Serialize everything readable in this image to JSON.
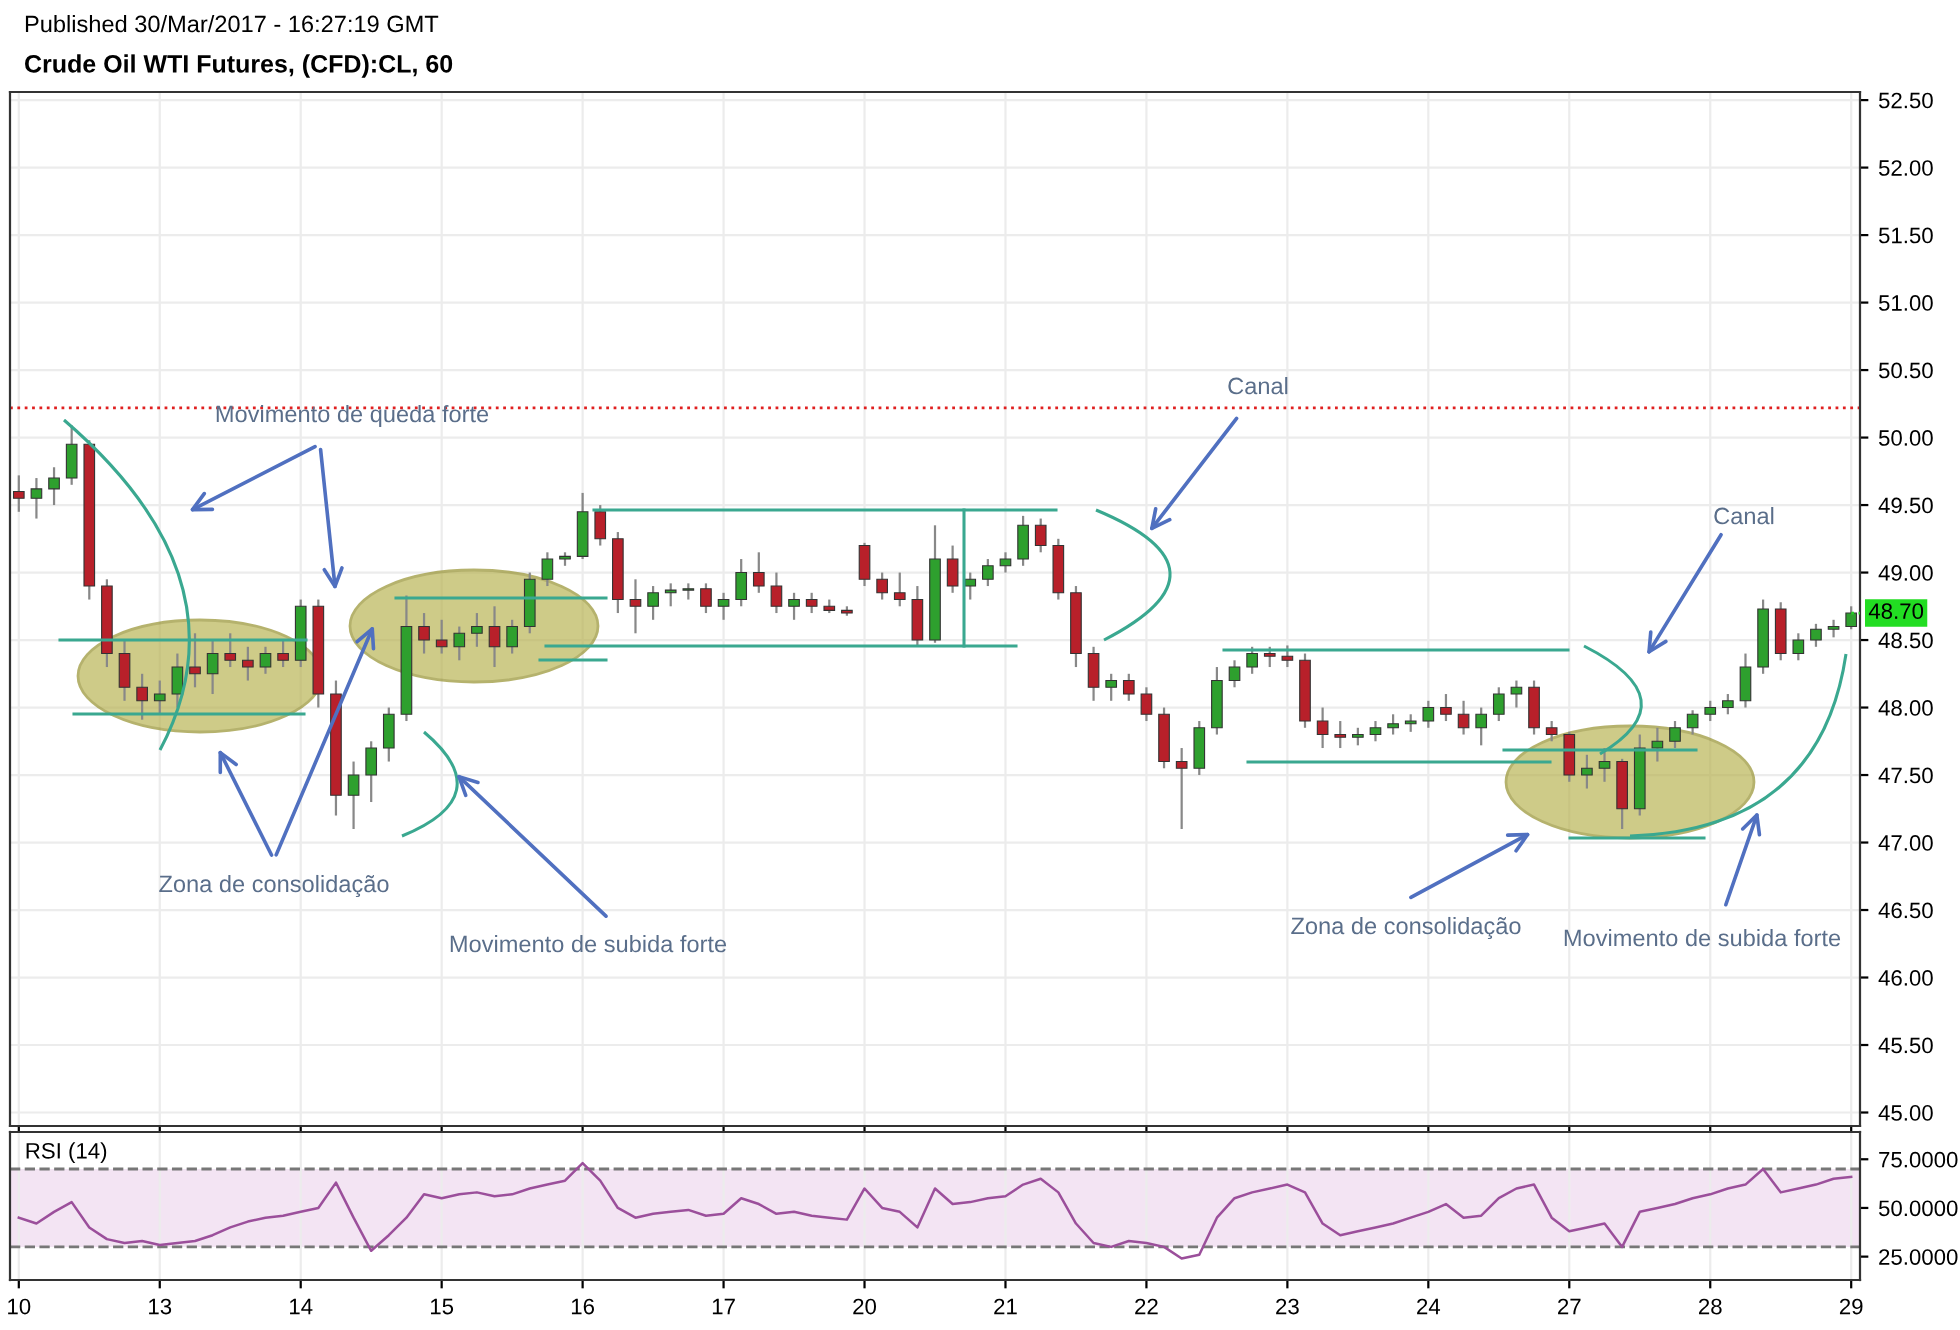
{
  "chart_data": [
    {
      "type": "candlestick",
      "title": "Crude Oil WTI Futures, (CFD):CL, 60",
      "subtitle": "Published 30/Mar/2017 - 16:27:19 GMT",
      "categories": [
        "10",
        null,
        null,
        null,
        null,
        null,
        null,
        null,
        "13",
        null,
        null,
        null,
        null,
        null,
        null,
        null,
        "14",
        null,
        null,
        null,
        null,
        null,
        null,
        null,
        "15",
        null,
        null,
        null,
        null,
        null,
        null,
        null,
        "16",
        null,
        null,
        null,
        null,
        null,
        null,
        null,
        "17",
        null,
        null,
        null,
        null,
        null,
        null,
        null,
        "20",
        null,
        null,
        null,
        null,
        null,
        null,
        null,
        "21",
        null,
        null,
        null,
        null,
        null,
        null,
        null,
        "22",
        null,
        null,
        null,
        null,
        null,
        null,
        null,
        "23",
        null,
        null,
        null,
        null,
        null,
        null,
        null,
        "24",
        null,
        null,
        null,
        null,
        null,
        null,
        null,
        "27",
        null,
        null,
        null,
        null,
        null,
        null,
        null,
        "28",
        null,
        null,
        null,
        null,
        null,
        null,
        null,
        "29"
      ],
      "ohlc": [
        [
          49.6,
          49.72,
          49.45,
          49.55
        ],
        [
          49.55,
          49.7,
          49.4,
          49.62
        ],
        [
          49.62,
          49.78,
          49.5,
          49.7
        ],
        [
          49.7,
          50.09,
          49.65,
          49.95
        ],
        [
          49.95,
          49.98,
          48.8,
          48.9
        ],
        [
          48.9,
          48.95,
          48.3,
          48.4
        ],
        [
          48.4,
          48.5,
          48.05,
          48.15
        ],
        [
          48.15,
          48.25,
          47.91,
          48.05
        ],
        [
          48.05,
          48.2,
          47.95,
          48.1
        ],
        [
          48.1,
          48.4,
          48.0,
          48.3
        ],
        [
          48.3,
          48.55,
          48.15,
          48.25
        ],
        [
          48.25,
          48.5,
          48.1,
          48.4
        ],
        [
          48.4,
          48.55,
          48.3,
          48.35
        ],
        [
          48.35,
          48.45,
          48.2,
          48.3
        ],
        [
          48.3,
          48.45,
          48.25,
          48.4
        ],
        [
          48.4,
          48.5,
          48.3,
          48.35
        ],
        [
          48.35,
          48.8,
          48.3,
          48.75
        ],
        [
          48.75,
          48.8,
          48.0,
          48.1
        ],
        [
          48.1,
          48.2,
          47.2,
          47.35
        ],
        [
          47.35,
          47.6,
          47.1,
          47.5
        ],
        [
          47.5,
          47.75,
          47.3,
          47.7
        ],
        [
          47.7,
          48.0,
          47.6,
          47.95
        ],
        [
          47.95,
          48.83,
          47.9,
          48.6
        ],
        [
          48.6,
          48.7,
          48.4,
          48.5
        ],
        [
          48.5,
          48.65,
          48.4,
          48.45
        ],
        [
          48.45,
          48.6,
          48.35,
          48.55
        ],
        [
          48.55,
          48.7,
          48.45,
          48.6
        ],
        [
          48.6,
          48.75,
          48.3,
          48.45
        ],
        [
          48.45,
          48.65,
          48.4,
          48.6
        ],
        [
          48.6,
          49.0,
          48.55,
          48.95
        ],
        [
          48.95,
          49.15,
          48.9,
          49.1
        ],
        [
          49.1,
          49.15,
          49.05,
          49.12
        ],
        [
          49.12,
          49.59,
          49.1,
          49.45
        ],
        [
          49.45,
          49.5,
          49.2,
          49.25
        ],
        [
          49.25,
          49.3,
          48.7,
          48.8
        ],
        [
          48.8,
          48.95,
          48.55,
          48.75
        ],
        [
          48.75,
          48.9,
          48.65,
          48.85
        ],
        [
          48.85,
          48.92,
          48.75,
          48.87
        ],
        [
          48.87,
          48.92,
          48.8,
          48.88
        ],
        [
          48.88,
          48.92,
          48.7,
          48.75
        ],
        [
          48.75,
          48.85,
          48.65,
          48.8
        ],
        [
          48.8,
          49.1,
          48.75,
          49.0
        ],
        [
          49.0,
          49.15,
          48.85,
          48.9
        ],
        [
          48.9,
          49.0,
          48.7,
          48.75
        ],
        [
          48.75,
          48.85,
          48.65,
          48.8
        ],
        [
          48.8,
          48.85,
          48.7,
          48.75
        ],
        [
          48.75,
          48.8,
          48.7,
          48.72
        ],
        [
          48.72,
          48.75,
          48.68,
          48.7
        ],
        [
          49.2,
          49.22,
          48.9,
          48.95
        ],
        [
          48.95,
          49.0,
          48.8,
          48.85
        ],
        [
          48.85,
          49.0,
          48.75,
          48.8
        ],
        [
          48.8,
          48.9,
          48.45,
          48.5
        ],
        [
          48.5,
          49.35,
          48.48,
          49.1
        ],
        [
          49.1,
          49.2,
          48.85,
          48.9
        ],
        [
          48.9,
          49.0,
          48.8,
          48.95
        ],
        [
          48.95,
          49.1,
          48.9,
          49.05
        ],
        [
          49.05,
          49.15,
          49.0,
          49.1
        ],
        [
          49.1,
          49.42,
          49.05,
          49.35
        ],
        [
          49.35,
          49.4,
          49.15,
          49.2
        ],
        [
          49.2,
          49.25,
          48.8,
          48.85
        ],
        [
          48.85,
          48.9,
          48.3,
          48.4
        ],
        [
          48.4,
          48.45,
          48.05,
          48.15
        ],
        [
          48.15,
          48.25,
          48.05,
          48.2
        ],
        [
          48.2,
          48.25,
          48.05,
          48.1
        ],
        [
          48.1,
          48.15,
          47.9,
          47.95
        ],
        [
          47.95,
          48.0,
          47.55,
          47.6
        ],
        [
          47.6,
          47.7,
          47.1,
          47.55
        ],
        [
          47.55,
          47.9,
          47.5,
          47.85
        ],
        [
          47.85,
          48.3,
          47.8,
          48.2
        ],
        [
          48.2,
          48.35,
          48.15,
          48.3
        ],
        [
          48.3,
          48.45,
          48.25,
          48.4
        ],
        [
          48.4,
          48.45,
          48.3,
          48.38
        ],
        [
          48.38,
          48.46,
          48.3,
          48.35
        ],
        [
          48.35,
          48.4,
          47.85,
          47.9
        ],
        [
          47.9,
          48.0,
          47.7,
          47.8
        ],
        [
          47.8,
          47.9,
          47.7,
          47.78
        ],
        [
          47.78,
          47.85,
          47.72,
          47.8
        ],
        [
          47.8,
          47.9,
          47.75,
          47.85
        ],
        [
          47.85,
          47.95,
          47.8,
          47.88
        ],
        [
          47.88,
          47.95,
          47.82,
          47.9
        ],
        [
          47.9,
          48.05,
          47.85,
          48.0
        ],
        [
          48.0,
          48.1,
          47.9,
          47.95
        ],
        [
          47.95,
          48.05,
          47.8,
          47.85
        ],
        [
          47.85,
          48.0,
          47.72,
          47.95
        ],
        [
          47.95,
          48.15,
          47.9,
          48.1
        ],
        [
          48.1,
          48.2,
          48.0,
          48.15
        ],
        [
          48.15,
          48.2,
          47.8,
          47.85
        ],
        [
          47.85,
          47.9,
          47.75,
          47.8
        ],
        [
          47.8,
          47.82,
          47.45,
          47.5
        ],
        [
          47.5,
          47.65,
          47.4,
          47.55
        ],
        [
          47.55,
          47.7,
          47.45,
          47.6
        ],
        [
          47.6,
          47.62,
          47.1,
          47.25
        ],
        [
          47.25,
          47.8,
          47.2,
          47.7
        ],
        [
          47.7,
          47.85,
          47.6,
          47.75
        ],
        [
          47.75,
          47.9,
          47.7,
          47.85
        ],
        [
          47.85,
          47.98,
          47.8,
          47.95
        ],
        [
          47.95,
          48.05,
          47.9,
          48.0
        ],
        [
          48.0,
          48.1,
          47.95,
          48.05
        ],
        [
          48.05,
          48.4,
          48.0,
          48.3
        ],
        [
          48.3,
          48.8,
          48.25,
          48.73
        ],
        [
          48.73,
          48.78,
          48.35,
          48.4
        ],
        [
          48.4,
          48.55,
          48.35,
          48.5
        ],
        [
          48.5,
          48.62,
          48.45,
          48.58
        ],
        [
          48.58,
          48.65,
          48.52,
          48.6
        ],
        [
          48.6,
          48.75,
          48.58,
          48.7
        ]
      ],
      "colors": [
        "#b8202a",
        "#2ea02e",
        "#2ea02e",
        "#2ea02e",
        "#b8202a",
        "#b8202a",
        "#b8202a",
        "#b8202a",
        "#2ea02e",
        "#2ea02e",
        "#b8202a",
        "#2ea02e",
        "#b8202a",
        "#b8202a",
        "#2ea02e",
        "#b8202a",
        "#2ea02e",
        "#b8202a",
        "#b8202a",
        "#2ea02e",
        "#2ea02e",
        "#2ea02e",
        "#2ea02e",
        "#b8202a",
        "#b8202a",
        "#2ea02e",
        "#2ea02e",
        "#b8202a",
        "#2ea02e",
        "#2ea02e",
        "#2ea02e",
        "#2ea02e",
        "#2ea02e",
        "#b8202a",
        "#b8202a",
        "#b8202a",
        "#2ea02e",
        "#2ea02e",
        "#2ea02e",
        "#b8202a",
        "#2ea02e",
        "#2ea02e",
        "#b8202a",
        "#b8202a",
        "#2ea02e",
        "#b8202a",
        "#b8202a",
        "#b8202a",
        "#b8202a",
        "#b8202a",
        "#b8202a",
        "#b8202a",
        "#2ea02e",
        "#b8202a",
        "#2ea02e",
        "#2ea02e",
        "#2ea02e",
        "#2ea02e",
        "#b8202a",
        "#b8202a",
        "#b8202a",
        "#b8202a",
        "#2ea02e",
        "#b8202a",
        "#b8202a",
        "#b8202a",
        "#b8202a",
        "#2ea02e",
        "#2ea02e",
        "#2ea02e",
        "#2ea02e",
        "#b8202a",
        "#b8202a",
        "#b8202a",
        "#b8202a",
        "#b8202a",
        "#2ea02e",
        "#2ea02e",
        "#2ea02e",
        "#2ea02e",
        "#2ea02e",
        "#b8202a",
        "#b8202a",
        "#2ea02e",
        "#2ea02e",
        "#2ea02e",
        "#b8202a",
        "#b8202a",
        "#b8202a",
        "#2ea02e",
        "#2ea02e",
        "#b8202a",
        "#2ea02e",
        "#2ea02e",
        "#2ea02e",
        "#2ea02e",
        "#2ea02e",
        "#2ea02e",
        "#2ea02e",
        "#2ea02e",
        "#b8202a",
        "#2ea02e",
        "#2ea02e",
        "#2ea02e",
        "#2ea02e"
      ],
      "ylim": [
        44.9,
        52.56
      ],
      "yticks": [
        {
          "value": 45,
          "label": "45.00"
        },
        {
          "value": 45.5,
          "label": "45.50"
        },
        {
          "value": 46,
          "label": "46.00"
        },
        {
          "value": 46.5,
          "label": "46.50"
        },
        {
          "value": 47,
          "label": "47.00"
        },
        {
          "value": 47.5,
          "label": "47.50"
        },
        {
          "value": 48,
          "label": "48.00"
        },
        {
          "value": 48.5,
          "label": "48.50"
        },
        {
          "value": 49,
          "label": "49.00"
        },
        {
          "value": 49.5,
          "label": "49.50"
        },
        {
          "value": 50,
          "label": "50.00"
        },
        {
          "value": 50.5,
          "label": "50.50"
        },
        {
          "value": 51,
          "label": "51.00"
        },
        {
          "value": 51.5,
          "label": "51.50"
        },
        {
          "value": 52,
          "label": "52.00"
        },
        {
          "value": 52.5,
          "label": "52.50"
        }
      ],
      "ref_lines": [
        {
          "axis": "y",
          "value": 50.22,
          "color": "#e02020",
          "line_style": "dotted"
        }
      ],
      "annotations": [
        {
          "text": "48.70",
          "x": "29",
          "y": 48.7
        },
        "Movimento de queda forte",
        "Zona de consolidação",
        "Movimento de subida forte",
        "Canal",
        "Canal",
        "Zona de consolidação",
        "Movimento de subida forte"
      ],
      "grid": true,
      "tick_labels": "y"
    },
    {
      "type": "line",
      "title": "RSI (14)",
      "categories": [
        "10",
        null,
        null,
        null,
        null,
        null,
        null,
        null,
        "13",
        null,
        null,
        null,
        null,
        null,
        null,
        null,
        "14",
        null,
        null,
        null,
        null,
        null,
        null,
        null,
        "15",
        null,
        null,
        null,
        null,
        null,
        null,
        null,
        "16",
        null,
        null,
        null,
        null,
        null,
        null,
        null,
        "17",
        null,
        null,
        null,
        null,
        null,
        null,
        null,
        "20",
        null,
        null,
        null,
        null,
        null,
        null,
        null,
        "21",
        null,
        null,
        null,
        null,
        null,
        null,
        null,
        "22",
        null,
        null,
        null,
        null,
        null,
        null,
        null,
        "23",
        null,
        null,
        null,
        null,
        null,
        null,
        null,
        "24",
        null,
        null,
        null,
        null,
        null,
        null,
        null,
        "27",
        null,
        null,
        null,
        null,
        null,
        null,
        null,
        "28",
        null,
        null,
        null,
        null,
        null,
        null,
        null,
        "29"
      ],
      "series": [
        {
          "color": "#9b4f9b",
          "values": [
            45,
            42,
            48,
            53,
            40,
            34,
            32,
            33,
            31,
            32,
            33,
            36,
            40,
            43,
            45,
            46,
            48,
            50,
            63,
            45,
            28,
            36,
            45,
            57,
            55,
            57,
            58,
            56,
            57,
            60,
            62,
            64,
            73,
            64,
            50,
            45,
            47,
            48,
            49,
            46,
            47,
            55,
            52,
            47,
            48,
            46,
            45,
            44,
            60,
            50,
            48,
            40,
            60,
            52,
            53,
            55,
            56,
            62,
            65,
            58,
            42,
            32,
            30,
            33,
            32,
            30,
            24,
            26,
            45,
            55,
            58,
            60,
            62,
            58,
            42,
            36,
            38,
            40,
            42,
            45,
            48,
            52,
            45,
            46,
            55,
            60,
            62,
            45,
            38,
            40,
            42,
            30,
            48,
            50,
            52,
            55,
            57,
            60,
            62,
            70,
            58,
            60,
            62,
            65,
            66
          ]
        }
      ],
      "ylim": [
        13,
        89
      ],
      "yticks": [
        {
          "value": 25,
          "label": "25.0000"
        },
        {
          "value": 50,
          "label": "50.0000"
        },
        {
          "value": 75,
          "label": "75.0000"
        }
      ],
      "bands": [
        {
          "axis": "y",
          "from": 30,
          "to": 70,
          "color": "#f3e4f3"
        }
      ],
      "ref_lines": [
        {
          "axis": "y",
          "value": 70,
          "color": "#777777",
          "line_style": "dashed"
        },
        {
          "axis": "y",
          "value": 30,
          "color": "#777777",
          "line_style": "dashed"
        }
      ],
      "grid": "x"
    }
  ]
}
